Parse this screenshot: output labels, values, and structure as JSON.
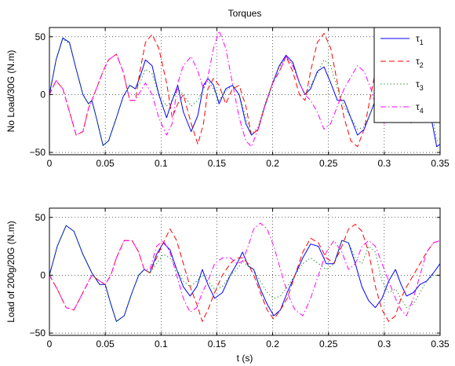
{
  "chart_data": [
    {
      "type": "line",
      "title": "Torques",
      "xlabel": "",
      "ylabel": "No Load/30G (N.m)",
      "xlim": [
        0,
        0.35
      ],
      "ylim": [
        -52,
        58
      ],
      "xticks": [
        "0",
        "0.05",
        "0.1",
        "0.15",
        "0.2",
        "0.25",
        "0.3",
        "0.35"
      ],
      "yticks": [
        "50",
        "0",
        "−50"
      ],
      "grid": true,
      "legend_position": "top-right",
      "series": [
        {
          "name": "τ",
          "subscript": "1",
          "color": "#0000ff",
          "dash": "solid",
          "x": [
            0,
            0.006,
            0.012,
            0.018,
            0.024,
            0.03,
            0.035,
            0.038,
            0.042,
            0.048,
            0.053,
            0.06,
            0.066,
            0.072,
            0.077,
            0.081,
            0.086,
            0.092,
            0.098,
            0.105,
            0.11,
            0.115,
            0.12,
            0.127,
            0.133,
            0.138,
            0.142,
            0.147,
            0.152,
            0.158,
            0.164,
            0.17,
            0.176,
            0.181,
            0.187,
            0.193,
            0.2,
            0.206,
            0.212,
            0.218,
            0.224,
            0.229,
            0.234,
            0.24,
            0.246,
            0.252,
            0.258,
            0.264,
            0.27,
            0.276,
            0.282,
            0.288,
            0.294,
            0.3,
            0.306,
            0.312,
            0.318,
            0.324,
            0.33,
            0.336,
            0.342,
            0.347,
            0.35
          ],
          "y": [
            0,
            30,
            49,
            45,
            22,
            0,
            -8,
            -5,
            -20,
            -44,
            -40,
            -20,
            -2,
            8,
            5,
            15,
            30,
            25,
            0,
            -20,
            -5,
            8,
            -15,
            -32,
            -18,
            8,
            14,
            8,
            -8,
            5,
            8,
            0,
            -25,
            -35,
            -30,
            -10,
            10,
            25,
            34,
            28,
            10,
            0,
            5,
            20,
            24,
            10,
            -5,
            -5,
            -20,
            -35,
            -30,
            -15,
            0,
            12,
            15,
            5,
            -10,
            -20,
            -10,
            5,
            -20,
            -45,
            -43
          ]
        },
        {
          "name": "τ",
          "subscript": "2",
          "color": "#ff0000",
          "dash": "dashed",
          "x": [
            0,
            0.006,
            0.012,
            0.018,
            0.024,
            0.03,
            0.035,
            0.038,
            0.042,
            0.048,
            0.053,
            0.06,
            0.066,
            0.072,
            0.077,
            0.081,
            0.086,
            0.092,
            0.098,
            0.105,
            0.11,
            0.115,
            0.12,
            0.127,
            0.133,
            0.138,
            0.142,
            0.147,
            0.152,
            0.158,
            0.164,
            0.17,
            0.176,
            0.181,
            0.187,
            0.193,
            0.2,
            0.206,
            0.212,
            0.218,
            0.224,
            0.229,
            0.234,
            0.24,
            0.246,
            0.252,
            0.258,
            0.264,
            0.27,
            0.276,
            0.282,
            0.288,
            0.294,
            0.3,
            0.306,
            0.312,
            0.318,
            0.324,
            0.33,
            0.336,
            0.342,
            0.347,
            0.35
          ],
          "y": [
            0,
            12,
            5,
            -15,
            -35,
            -32,
            -12,
            -5,
            5,
            20,
            30,
            35,
            20,
            -5,
            -5,
            20,
            45,
            52,
            40,
            10,
            -20,
            -8,
            0,
            -25,
            -43,
            -25,
            5,
            14,
            8,
            -8,
            5,
            8,
            -10,
            -35,
            -30,
            -10,
            10,
            20,
            33,
            20,
            0,
            -5,
            20,
            45,
            53,
            40,
            10,
            -20,
            -40,
            -45,
            -30,
            0,
            30,
            45,
            40,
            15,
            -15,
            -25,
            -10,
            20,
            40,
            48,
            45
          ]
        },
        {
          "name": "τ",
          "subscript": "3",
          "color": "#008000",
          "dash": "dotted",
          "x": [
            0,
            0.006,
            0.012,
            0.018,
            0.024,
            0.03,
            0.035,
            0.038,
            0.042,
            0.048,
            0.053,
            0.06,
            0.066,
            0.072,
            0.077,
            0.081,
            0.086,
            0.092,
            0.098,
            0.105,
            0.11,
            0.115,
            0.12,
            0.127,
            0.133,
            0.138,
            0.142,
            0.147,
            0.152,
            0.158,
            0.164,
            0.17,
            0.176,
            0.181,
            0.187,
            0.193,
            0.2,
            0.206,
            0.212,
            0.218,
            0.224,
            0.229,
            0.234,
            0.24,
            0.246,
            0.252,
            0.258,
            0.264,
            0.27,
            0.276,
            0.282,
            0.288,
            0.294,
            0.3,
            0.306,
            0.312,
            0.318,
            0.324,
            0.33,
            0.336,
            0.342,
            0.347,
            0.35
          ],
          "y": [
            0,
            30,
            48,
            44,
            22,
            0,
            -8,
            -5,
            -20,
            -44,
            -40,
            -20,
            -2,
            8,
            5,
            10,
            22,
            18,
            0,
            -10,
            -5,
            5,
            0,
            -10,
            -5,
            5,
            12,
            5,
            -5,
            3,
            8,
            0,
            -20,
            -34,
            -28,
            -8,
            10,
            24,
            33,
            26,
            10,
            0,
            8,
            18,
            30,
            25,
            5,
            -10,
            -20,
            -30,
            -28,
            -15,
            0,
            10,
            12,
            5,
            -8,
            -15,
            -8,
            5,
            -10,
            -40,
            -38
          ]
        },
        {
          "name": "τ",
          "subscript": "4",
          "color": "#ff00ff",
          "dash": "dashdot",
          "x": [
            0,
            0.006,
            0.012,
            0.018,
            0.024,
            0.03,
            0.035,
            0.038,
            0.042,
            0.048,
            0.053,
            0.06,
            0.066,
            0.072,
            0.077,
            0.081,
            0.086,
            0.092,
            0.098,
            0.105,
            0.11,
            0.115,
            0.12,
            0.127,
            0.133,
            0.138,
            0.142,
            0.147,
            0.152,
            0.158,
            0.164,
            0.17,
            0.176,
            0.181,
            0.187,
            0.193,
            0.2,
            0.206,
            0.212,
            0.218,
            0.224,
            0.229,
            0.234,
            0.24,
            0.246,
            0.252,
            0.258,
            0.264,
            0.27,
            0.276,
            0.282,
            0.288,
            0.294,
            0.3,
            0.306,
            0.312,
            0.318,
            0.324,
            0.33,
            0.336,
            0.342,
            0.347,
            0.35
          ],
          "y": [
            0,
            12,
            5,
            -15,
            -35,
            -32,
            -12,
            -5,
            5,
            20,
            30,
            35,
            20,
            -5,
            -5,
            2,
            10,
            0,
            -20,
            -35,
            -25,
            10,
            25,
            33,
            20,
            5,
            15,
            40,
            55,
            40,
            10,
            -20,
            -40,
            -45,
            -30,
            -10,
            10,
            20,
            33,
            25,
            10,
            0,
            -5,
            -15,
            -30,
            -25,
            -10,
            5,
            15,
            25,
            20,
            5,
            -15,
            -25,
            -15,
            0,
            10,
            15,
            15,
            10,
            0,
            -5,
            -5
          ]
        }
      ]
    },
    {
      "type": "line",
      "title": "",
      "xlabel": "t (s)",
      "ylabel": "Load of 200g/20G (N.m)",
      "xlim": [
        0,
        0.35
      ],
      "ylim": [
        -52,
        58
      ],
      "xticks": [
        "0",
        "0.05",
        "0.1",
        "0.15",
        "0.2",
        "0.25",
        "0.3",
        "0.35"
      ],
      "yticks": [
        "50",
        "0",
        "−50"
      ],
      "grid": true,
      "series": [
        {
          "name": "τ",
          "subscript": "1",
          "color": "#0000ff",
          "dash": "solid",
          "x": [
            0,
            0.007,
            0.015,
            0.022,
            0.03,
            0.038,
            0.045,
            0.05,
            0.055,
            0.06,
            0.067,
            0.074,
            0.08,
            0.085,
            0.09,
            0.096,
            0.102,
            0.108,
            0.114,
            0.12,
            0.126,
            0.132,
            0.137,
            0.142,
            0.148,
            0.155,
            0.162,
            0.168,
            0.173,
            0.178,
            0.183,
            0.189,
            0.195,
            0.201,
            0.207,
            0.213,
            0.22,
            0.227,
            0.234,
            0.241,
            0.248,
            0.255,
            0.262,
            0.268,
            0.274,
            0.28,
            0.286,
            0.292,
            0.298,
            0.304,
            0.31,
            0.315,
            0.32,
            0.326,
            0.332,
            0.338,
            0.344,
            0.35
          ],
          "y": [
            0,
            25,
            43,
            38,
            18,
            2,
            -8,
            -8,
            -25,
            -40,
            -35,
            -15,
            0,
            5,
            2,
            18,
            28,
            22,
            5,
            -10,
            -18,
            -10,
            5,
            -8,
            -20,
            -15,
            0,
            10,
            20,
            8,
            5,
            -12,
            -25,
            -35,
            -30,
            -15,
            0,
            15,
            27,
            25,
            10,
            10,
            30,
            28,
            10,
            -10,
            -22,
            -28,
            -20,
            -5,
            5,
            -8,
            -18,
            -15,
            -8,
            -5,
            2,
            10
          ]
        },
        {
          "name": "τ",
          "subscript": "2",
          "color": "#ff0000",
          "dash": "dashed",
          "x": [
            0,
            0.007,
            0.015,
            0.022,
            0.03,
            0.038,
            0.045,
            0.05,
            0.055,
            0.06,
            0.067,
            0.074,
            0.08,
            0.085,
            0.09,
            0.096,
            0.102,
            0.108,
            0.114,
            0.12,
            0.126,
            0.132,
            0.137,
            0.142,
            0.148,
            0.155,
            0.162,
            0.168,
            0.173,
            0.178,
            0.183,
            0.189,
            0.195,
            0.201,
            0.207,
            0.213,
            0.22,
            0.227,
            0.234,
            0.241,
            0.248,
            0.255,
            0.262,
            0.268,
            0.274,
            0.28,
            0.286,
            0.292,
            0.298,
            0.304,
            0.31,
            0.315,
            0.32,
            0.326,
            0.332,
            0.338,
            0.344,
            0.35
          ],
          "y": [
            0,
            -12,
            -28,
            -30,
            -15,
            0,
            -5,
            -8,
            0,
            15,
            30,
            30,
            20,
            5,
            2,
            15,
            28,
            40,
            30,
            10,
            -10,
            -25,
            -40,
            -30,
            -15,
            0,
            10,
            15,
            15,
            10,
            0,
            -15,
            -30,
            -38,
            -30,
            -20,
            0,
            20,
            32,
            28,
            15,
            10,
            25,
            40,
            44,
            38,
            20,
            -10,
            -30,
            -40,
            -35,
            -20,
            -10,
            0,
            10,
            20,
            28,
            30
          ]
        },
        {
          "name": "τ",
          "subscript": "3",
          "color": "#008000",
          "dash": "dotted",
          "x": [
            0,
            0.007,
            0.015,
            0.022,
            0.03,
            0.038,
            0.045,
            0.05,
            0.055,
            0.06,
            0.067,
            0.074,
            0.08,
            0.085,
            0.09,
            0.096,
            0.102,
            0.108,
            0.114,
            0.12,
            0.126,
            0.132,
            0.137,
            0.142,
            0.148,
            0.155,
            0.162,
            0.168,
            0.173,
            0.178,
            0.183,
            0.189,
            0.195,
            0.201,
            0.207,
            0.213,
            0.22,
            0.227,
            0.234,
            0.241,
            0.248,
            0.255,
            0.262,
            0.268,
            0.274,
            0.28,
            0.286,
            0.292,
            0.298,
            0.304,
            0.31,
            0.315,
            0.32,
            0.326,
            0.332,
            0.338,
            0.344,
            0.35
          ],
          "y": [
            0,
            25,
            43,
            38,
            18,
            2,
            -8,
            -8,
            -25,
            -40,
            -35,
            -15,
            0,
            5,
            2,
            10,
            18,
            15,
            5,
            -5,
            -10,
            -5,
            0,
            -5,
            -12,
            -10,
            0,
            5,
            12,
            8,
            5,
            -5,
            -15,
            -20,
            -18,
            -10,
            0,
            10,
            15,
            10,
            5,
            10,
            30,
            28,
            15,
            10,
            25,
            20,
            -5,
            -15,
            -12,
            -20,
            -28,
            -25,
            -15,
            -5,
            0,
            0
          ]
        },
        {
          "name": "τ",
          "subscript": "4",
          "color": "#ff00ff",
          "dash": "dashdot",
          "x": [
            0,
            0.007,
            0.015,
            0.022,
            0.03,
            0.038,
            0.045,
            0.05,
            0.055,
            0.06,
            0.067,
            0.074,
            0.08,
            0.085,
            0.09,
            0.096,
            0.102,
            0.108,
            0.114,
            0.12,
            0.126,
            0.132,
            0.137,
            0.142,
            0.148,
            0.155,
            0.162,
            0.168,
            0.173,
            0.178,
            0.183,
            0.189,
            0.195,
            0.201,
            0.207,
            0.213,
            0.22,
            0.227,
            0.234,
            0.241,
            0.248,
            0.255,
            0.262,
            0.268,
            0.274,
            0.28,
            0.286,
            0.292,
            0.298,
            0.304,
            0.31,
            0.315,
            0.32,
            0.326,
            0.332,
            0.338,
            0.344,
            0.35
          ],
          "y": [
            0,
            -12,
            -28,
            -30,
            -15,
            0,
            -5,
            -8,
            0,
            15,
            30,
            30,
            20,
            5,
            5,
            25,
            30,
            20,
            0,
            -20,
            -32,
            -28,
            -15,
            -5,
            10,
            15,
            15,
            10,
            12,
            25,
            40,
            45,
            40,
            25,
            5,
            -15,
            -30,
            -35,
            -20,
            0,
            20,
            30,
            20,
            5,
            10,
            25,
            30,
            25,
            10,
            -5,
            -20,
            -30,
            -35,
            -20,
            0,
            20,
            28,
            30
          ]
        }
      ]
    }
  ]
}
